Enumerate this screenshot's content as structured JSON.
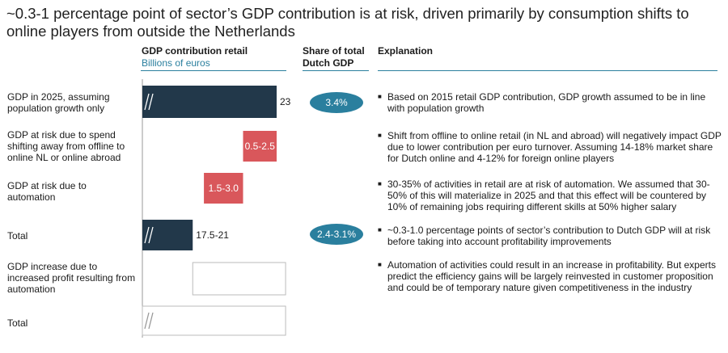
{
  "title": "~0.3-1 percentage point of sector’s GDP contribution is at risk, driven primarily by consumption shifts to online players from outside the Netherlands",
  "headers": {
    "chart": "GDP contribution retail",
    "chart_unit": "Billions of euros",
    "share_line1": "Share of total",
    "share_line2": "Dutch GDP",
    "explanation": "Explanation"
  },
  "rows": [
    {
      "label": "GDP in 2025, assuming population growth only",
      "share": "3.4%",
      "explanation": "Based on 2015 retail GDP contribution, GDP growth assumed to be in line with population growth"
    },
    {
      "label": "GDP at risk due to spend shifting away from offline to online NL or online abroad",
      "share": "",
      "explanation": "Shift from offline to online retail (in NL and abroad) will negatively impact GDP due to lower contribution per euro turnover. Assuming 14-18% market share for Dutch online and 4-12% for foreign online players"
    },
    {
      "label": "GDP at risk due to automation",
      "share": "",
      "explanation": "30-35% of activities in retail are at risk of automation. We assumed that 30-50% of this will materialize in 2025 and that this effect will be countered by 10% of remaining jobs requiring different skills at 50% higher salary"
    },
    {
      "label": "Total",
      "share": "2.4-3.1%",
      "explanation": "~0.3-1.0 percentage points of sector’s contribution to Dutch GDP will at risk before taking into account profitability improvements"
    },
    {
      "label": "GDP increase due to increased profit resulting from automation",
      "share": "",
      "explanation": "Automation of activities could result in an increase in profitability. But experts predict the efficiency gains will be largely reinvested in customer proposition and could be of temporary nature given competitiveness in the industry"
    },
    {
      "label": "Total",
      "share": "",
      "explanation": ""
    }
  ],
  "chart_data": {
    "type": "bar",
    "subtype": "waterfall",
    "title": "GDP contribution retail",
    "ylabel": "Billions of euros",
    "categories": [
      "GDP in 2025, assuming population growth only",
      "GDP at risk due to spend shifting away from offline to online NL or online abroad",
      "GDP at risk due to automation",
      "Total",
      "GDP increase due to increased profit resulting from automation",
      "Total"
    ],
    "bars": [
      {
        "kind": "total",
        "value": 23,
        "label": "23",
        "color": "#22384a"
      },
      {
        "kind": "decrease",
        "start": 23,
        "end": 21.5,
        "label": "0.5-2.5",
        "color": "#d9575b"
      },
      {
        "kind": "decrease",
        "start": 21.5,
        "end": 19.75,
        "label": "1.5-3.0",
        "color": "#d9575b"
      },
      {
        "kind": "total",
        "value": 19.25,
        "label": "17.5-21",
        "color": "#22384a"
      },
      {
        "kind": "increase",
        "start": 19.25,
        "end": 23.4,
        "label": "",
        "color": "#ffffff"
      },
      {
        "kind": "total",
        "value": 23.4,
        "label": "",
        "color": "#ffffff"
      }
    ],
    "axis_break": true,
    "xlim_visible": [
      17,
      24
    ]
  },
  "colors": {
    "accent": "#2a7f9e",
    "dark_bar": "#22384a",
    "risk_bar": "#d9575b"
  }
}
